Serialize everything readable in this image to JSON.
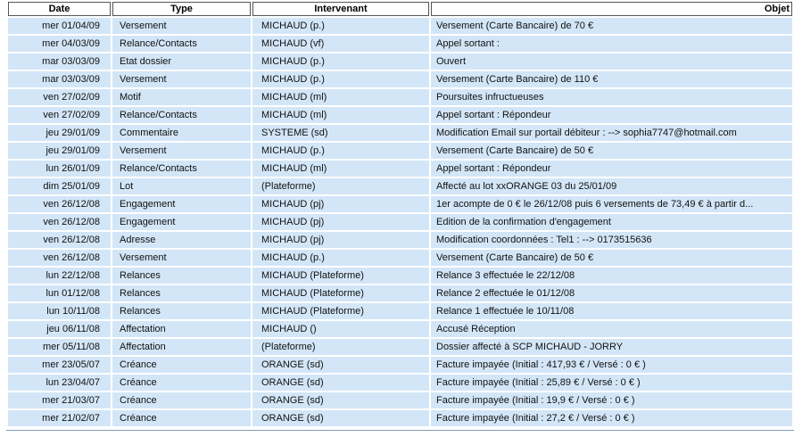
{
  "headers": {
    "date": "Date",
    "type": "Type",
    "intervenant": "Intervenant",
    "objet": "Objet"
  },
  "rows": [
    {
      "date": "mer 01/04/09",
      "type": "Versement",
      "intervenant": "MICHAUD (p.)",
      "objet": "Versement (Carte Bancaire) de 70 €"
    },
    {
      "date": "mer 04/03/09",
      "type": "Relance/Contacts",
      "intervenant": "MICHAUD (vf)",
      "objet": "Appel sortant :"
    },
    {
      "date": "mar 03/03/09",
      "type": "Etat dossier",
      "intervenant": "MICHAUD (p.)",
      "objet": "Ouvert"
    },
    {
      "date": "mar 03/03/09",
      "type": "Versement",
      "intervenant": "MICHAUD (p.)",
      "objet": "Versement (Carte Bancaire) de 110 €"
    },
    {
      "date": "ven 27/02/09",
      "type": "Motif",
      "intervenant": "MICHAUD (ml)",
      "objet": "Poursuites infructueuses"
    },
    {
      "date": "ven 27/02/09",
      "type": "Relance/Contacts",
      "intervenant": "MICHAUD (ml)",
      "objet": "Appel sortant : Répondeur"
    },
    {
      "date": "jeu 29/01/09",
      "type": "Commentaire",
      "intervenant": "SYSTEME (sd)",
      "objet": "Modification Email sur portail débiteur : --> sophia7747@hotmail.com"
    },
    {
      "date": "jeu 29/01/09",
      "type": "Versement",
      "intervenant": "MICHAUD (p.)",
      "objet": "Versement (Carte Bancaire) de 50 €"
    },
    {
      "date": "lun 26/01/09",
      "type": "Relance/Contacts",
      "intervenant": "MICHAUD (ml)",
      "objet": "Appel sortant : Répondeur"
    },
    {
      "date": "dim 25/01/09",
      "type": "Lot",
      "intervenant": " (Plateforme)",
      "objet": "Affecté au lot xxORANGE 03 du 25/01/09"
    },
    {
      "date": "ven 26/12/08",
      "type": "Engagement",
      "intervenant": "MICHAUD (pj)",
      "objet": "1er acompte de 0 € le 26/12/08 puis 6 versements de 73,49 € à partir d..."
    },
    {
      "date": "ven 26/12/08",
      "type": "Engagement",
      "intervenant": "MICHAUD (pj)",
      "objet": "Edition de la confirmation d'engagement"
    },
    {
      "date": "ven 26/12/08",
      "type": "Adresse",
      "intervenant": "MICHAUD (pj)",
      "objet": "Modification coordonnées : Tel1 : --> 0173515636"
    },
    {
      "date": "ven 26/12/08",
      "type": "Versement",
      "intervenant": "MICHAUD (p.)",
      "objet": "Versement (Carte Bancaire) de 50 €"
    },
    {
      "date": "lun 22/12/08",
      "type": "Relances",
      "intervenant": "MICHAUD (Plateforme)",
      "objet": "Relance 3 effectuée le 22/12/08"
    },
    {
      "date": "lun 01/12/08",
      "type": "Relances",
      "intervenant": "MICHAUD (Plateforme)",
      "objet": "Relance 2 effectuée le 01/12/08"
    },
    {
      "date": "lun 10/11/08",
      "type": "Relances",
      "intervenant": "MICHAUD (Plateforme)",
      "objet": "Relance 1 effectuée le 10/11/08"
    },
    {
      "date": "jeu 06/11/08",
      "type": "Affectation",
      "intervenant": "MICHAUD ()",
      "objet": "Accusé Réception"
    },
    {
      "date": "mer 05/11/08",
      "type": "Affectation",
      "intervenant": " (Plateforme)",
      "objet": "Dossier affecté à SCP MICHAUD - JORRY"
    },
    {
      "date": "mer 23/05/07",
      "type": "Créance",
      "intervenant": "ORANGE (sd)",
      "objet": "Facture impayée (Initial : 417,93 € / Versé : 0 € )"
    },
    {
      "date": "lun 23/04/07",
      "type": "Créance",
      "intervenant": "ORANGE (sd)",
      "objet": "Facture impayée (Initial : 25,89 € / Versé : 0 € )"
    },
    {
      "date": "mer 21/03/07",
      "type": "Créance",
      "intervenant": "ORANGE (sd)",
      "objet": "Facture impayée (Initial : 19,9 € / Versé : 0 € )"
    },
    {
      "date": "mer 21/02/07",
      "type": "Créance",
      "intervenant": "ORANGE (sd)",
      "objet": "Facture impayée (Initial : 27,2 € / Versé : 0 € )"
    }
  ],
  "colors": {
    "row_bg": "#d3e6f7",
    "header_border": "#555555",
    "baseline": "#7f9db9"
  }
}
